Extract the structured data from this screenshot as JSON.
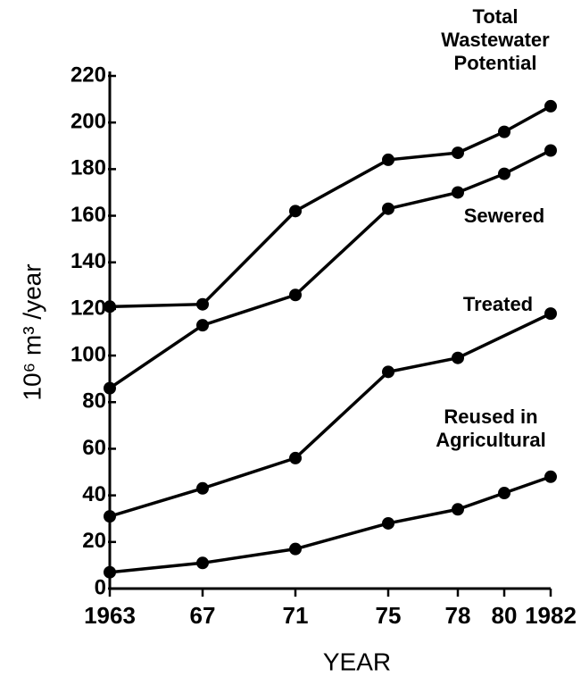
{
  "chart_data": {
    "type": "line",
    "xlabel": "YEAR",
    "ylabel": "10⁶ m³ /year",
    "xlim": [
      1963,
      1982
    ],
    "xticks": [
      {
        "value": 1963,
        "label": "1963"
      },
      {
        "value": 1967,
        "label": "67"
      },
      {
        "value": 1971,
        "label": "71"
      },
      {
        "value": 1975,
        "label": "75"
      },
      {
        "value": 1978,
        "label": "78"
      },
      {
        "value": 1980,
        "label": "80"
      },
      {
        "value": 1982,
        "label": "1982"
      }
    ],
    "ylim": [
      0,
      220
    ],
    "yticks": [
      0,
      20,
      40,
      60,
      80,
      100,
      120,
      140,
      160,
      180,
      200,
      220
    ],
    "grid": false,
    "series": [
      {
        "name": [
          "Total",
          "Wastewater",
          "Potential"
        ],
        "color": "#000000",
        "x": [
          1963,
          1967,
          1971,
          1975,
          1978,
          1980,
          1982
        ],
        "values": [
          121,
          122,
          162,
          184,
          187,
          196,
          207
        ]
      },
      {
        "name": [
          "Sewered"
        ],
        "color": "#000000",
        "x": [
          1963,
          1967,
          1971,
          1975,
          1978,
          1980,
          1982
        ],
        "values": [
          86,
          113,
          126,
          163,
          170,
          178,
          188
        ]
      },
      {
        "name": [
          "Treated"
        ],
        "color": "#000000",
        "x": [
          1963,
          1967,
          1971,
          1975,
          1978,
          1982
        ],
        "values": [
          31,
          43,
          56,
          93,
          99,
          118
        ]
      },
      {
        "name": [
          "Reused in",
          "Agricultural"
        ],
        "color": "#000000",
        "x": [
          1963,
          1967,
          1971,
          1975,
          1978,
          1980,
          1982
        ],
        "values": [
          7,
          11,
          17,
          28,
          34,
          41,
          48
        ]
      }
    ]
  }
}
